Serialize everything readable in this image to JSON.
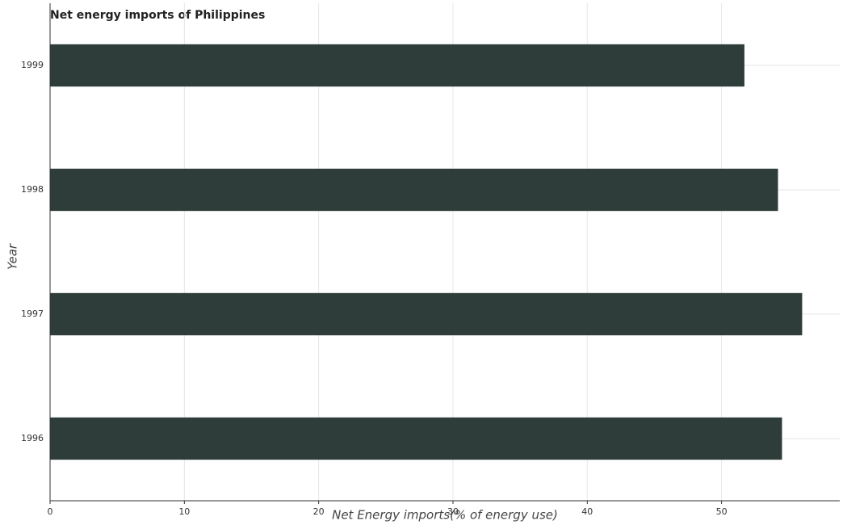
{
  "chart_data": {
    "type": "hbar",
    "title": "Net energy imports of Philippines",
    "x_label": "Net Energy imports(% of energy use)",
    "y_label": "Year",
    "categories": [
      "1996",
      "1997",
      "1998",
      "1999"
    ],
    "values": [
      54.5,
      56.0,
      54.2,
      51.7
    ],
    "color": "#2e3d39",
    "xlim": [
      0,
      58.8
    ],
    "xticks": [
      0,
      10,
      20,
      30,
      40,
      50
    ],
    "grid": true
  }
}
